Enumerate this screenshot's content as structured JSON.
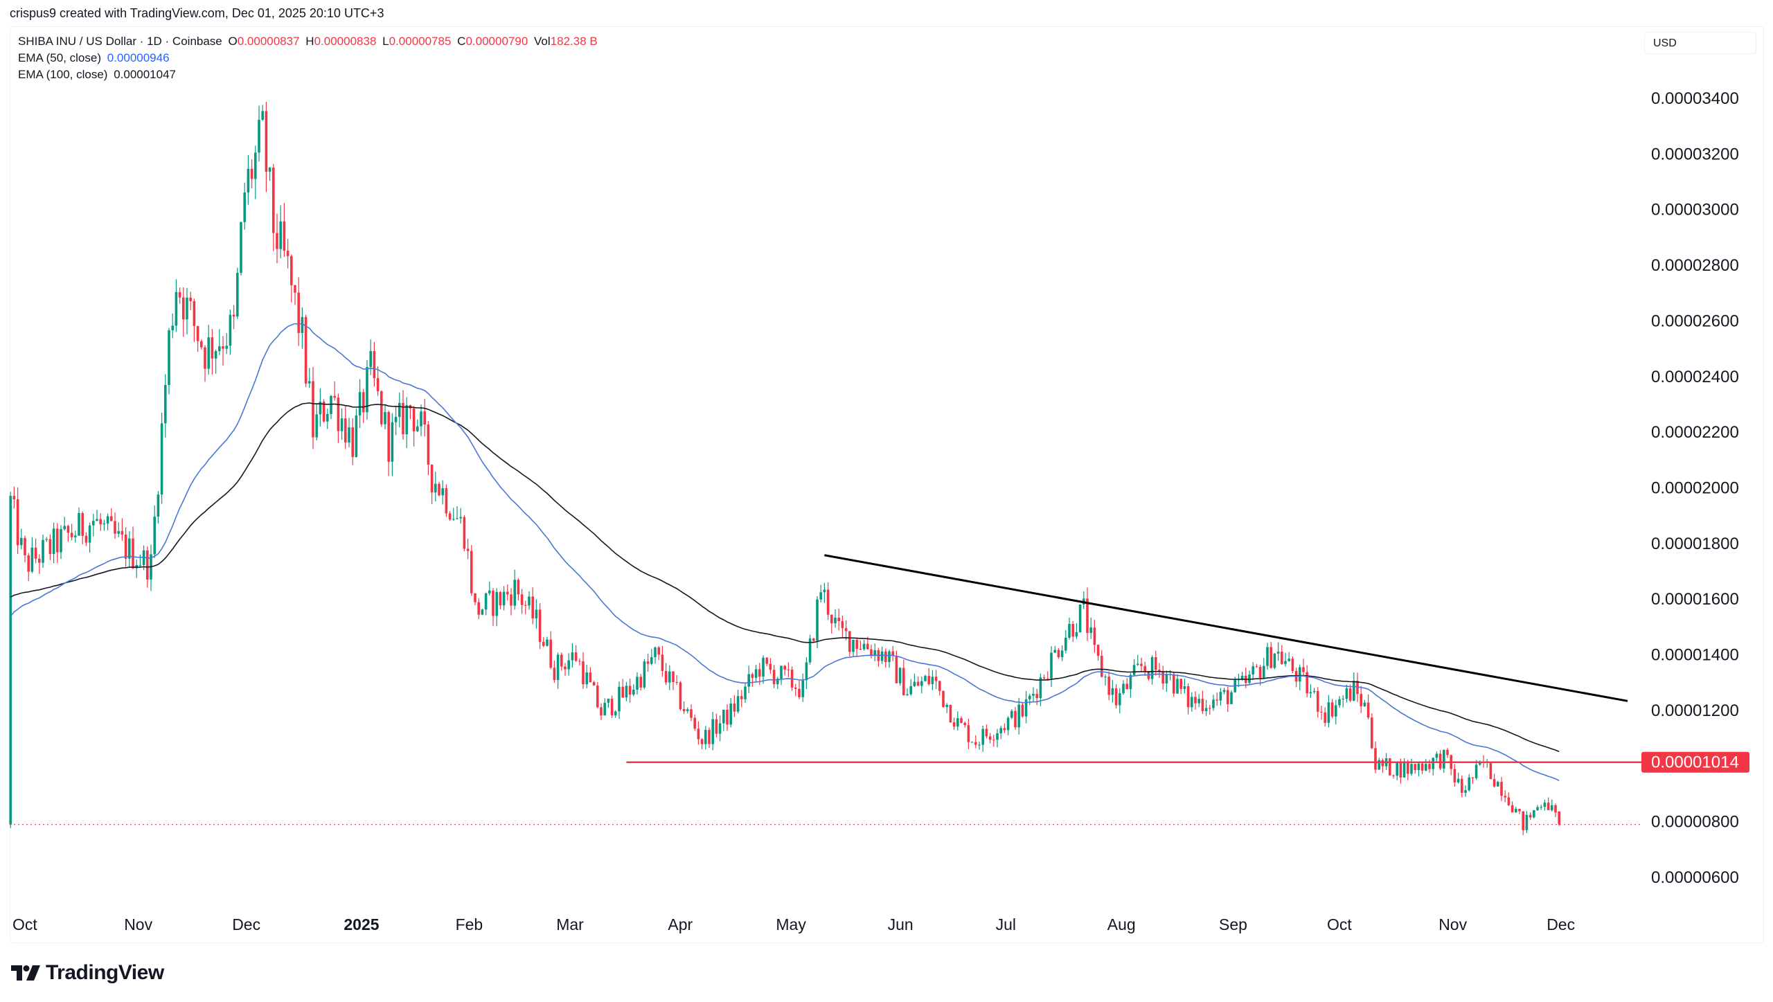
{
  "attribution": "crispus9 created with TradingView.com, Dec 01, 2025 20:10 UTC+3",
  "legend": {
    "symbol": "SHIBA INU / US Dollar · 1D · Coinbase",
    "o_label": "O",
    "o": "0.00000837",
    "h_label": "H",
    "h": "0.00000838",
    "l_label": "L",
    "l": "0.00000785",
    "c_label": "C",
    "c": "0.00000790",
    "vol_label": "Vol",
    "vol": "182.38 B",
    "ema50_label": "EMA (50, close)",
    "ema50": "0.00000946",
    "ema100_label": "EMA (100, close)",
    "ema100": "0.00001047"
  },
  "currency": "USD",
  "logo": "TradingView",
  "colors": {
    "up": "#089981",
    "down": "#f23645",
    "ema50": "#4a76d6",
    "ema100": "#131722",
    "support": "#f23645",
    "trendline": "#000000"
  },
  "chart_data": {
    "type": "candlestick",
    "title": "SHIBA INU / US Dollar · 1D · Coinbase",
    "last_candle": {
      "date": "2025-12-01",
      "open": 8.37e-06,
      "high": 8.38e-06,
      "low": 7.85e-06,
      "close": 7.9e-06
    },
    "close_path": [
      [
        "2024-09-27",
        1.95e-05
      ],
      [
        "2024-10-01",
        1.722e-05
      ],
      [
        "2024-10-10",
        1.803e-05
      ],
      [
        "2024-10-20",
        1.884e-05
      ],
      [
        "2024-10-31",
        1.762e-05
      ],
      [
        "2024-11-05",
        1.722e-05
      ],
      [
        "2024-11-10",
        2.534e-05
      ],
      [
        "2024-11-12",
        2.738e-05
      ],
      [
        "2024-11-20",
        2.494e-05
      ],
      [
        "2024-11-28",
        2.575e-05
      ],
      [
        "2024-12-01",
        3.063e-05
      ],
      [
        "2024-12-06",
        3.266e-05
      ],
      [
        "2024-12-09",
        2.941e-05
      ],
      [
        "2024-12-13",
        2.778e-05
      ],
      [
        "2024-12-17",
        2.534e-05
      ],
      [
        "2024-12-20",
        2.209e-05
      ],
      [
        "2024-12-25",
        2.331e-05
      ],
      [
        "2024-12-31",
        2.169e-05
      ],
      [
        "2025-01-05",
        2.412e-05
      ],
      [
        "2025-01-10",
        2.169e-05
      ],
      [
        "2025-01-16",
        2.291e-05
      ],
      [
        "2025-01-19",
        2.209e-05
      ],
      [
        "2025-01-22",
        2.047e-05
      ],
      [
        "2025-01-26",
        1.966e-05
      ],
      [
        "2025-01-31",
        1.844e-05
      ],
      [
        "2025-02-03",
        1.559e-05
      ],
      [
        "2025-02-10",
        1.6e-05
      ],
      [
        "2025-02-14",
        1.64e-05
      ],
      [
        "2025-02-20",
        1.518e-05
      ],
      [
        "2025-02-25",
        1.356e-05
      ],
      [
        "2025-03-03",
        1.396e-05
      ],
      [
        "2025-03-10",
        1.193e-05
      ],
      [
        "2025-03-18",
        1.274e-05
      ],
      [
        "2025-03-25",
        1.396e-05
      ],
      [
        "2025-04-01",
        1.234e-05
      ],
      [
        "2025-04-07",
        1.092e-05
      ],
      [
        "2025-04-15",
        1.193e-05
      ],
      [
        "2025-04-23",
        1.356e-05
      ],
      [
        "2025-04-30",
        1.315e-05
      ],
      [
        "2025-05-05",
        1.274e-05
      ],
      [
        "2025-05-10",
        1.64e-05
      ],
      [
        "2025-05-15",
        1.478e-05
      ],
      [
        "2025-05-22",
        1.437e-05
      ],
      [
        "2025-05-28",
        1.396e-05
      ],
      [
        "2025-06-03",
        1.274e-05
      ],
      [
        "2025-06-10",
        1.315e-05
      ],
      [
        "2025-06-17",
        1.153e-05
      ],
      [
        "2025-06-22",
        1.092e-05
      ],
      [
        "2025-06-30",
        1.153e-05
      ],
      [
        "2025-07-05",
        1.193e-05
      ],
      [
        "2025-07-11",
        1.335e-05
      ],
      [
        "2025-07-17",
        1.478e-05
      ],
      [
        "2025-07-22",
        1.559e-05
      ],
      [
        "2025-07-25",
        1.396e-05
      ],
      [
        "2025-07-31",
        1.234e-05
      ],
      [
        "2025-08-07",
        1.356e-05
      ],
      [
        "2025-08-14",
        1.335e-05
      ],
      [
        "2025-08-20",
        1.234e-05
      ],
      [
        "2025-08-28",
        1.234e-05
      ],
      [
        "2025-09-05",
        1.295e-05
      ],
      [
        "2025-09-13",
        1.417e-05
      ],
      [
        "2025-09-20",
        1.315e-05
      ],
      [
        "2025-09-27",
        1.193e-05
      ],
      [
        "2025-10-05",
        1.274e-05
      ],
      [
        "2025-10-09",
        1.193e-05
      ],
      [
        "2025-10-11",
        1e-05
      ],
      [
        "2025-10-20",
        9.9e-06
      ],
      [
        "2025-10-30",
        1.031e-05
      ],
      [
        "2025-11-04",
        9.09e-06
      ],
      [
        "2025-11-10",
        1.01e-05
      ],
      [
        "2025-11-17",
        8.88e-06
      ],
      [
        "2025-11-21",
        7.87e-06
      ],
      [
        "2025-11-27",
        8.88e-06
      ],
      [
        "2025-12-01",
        7.9e-06
      ]
    ],
    "indicators": [
      {
        "name": "EMA (50, close)",
        "period": 50,
        "last": 9.46e-06
      },
      {
        "name": "EMA (100, close)",
        "period": 100,
        "last": 1.047e-05
      }
    ],
    "drawings": {
      "trendline": {
        "from": [
          "2025-05-11",
          1.758e-05
        ],
        "to": [
          "2025-12-20",
          1.234e-05
        ]
      },
      "support": {
        "from": "2025-03-17",
        "value": 1.014e-05,
        "label": "0.00001014"
      },
      "last_price_line": 7.9e-06
    },
    "y_ticks": [
      "0.00003400",
      "0.00003200",
      "0.00003000",
      "0.00002800",
      "0.00002600",
      "0.00002400",
      "0.00002200",
      "0.00002000",
      "0.00001800",
      "0.00001600",
      "0.00001400",
      "0.00001200",
      "0.00000800",
      "0.00000600"
    ],
    "x_ticks": [
      {
        "label": "Oct",
        "date": "2024-10-01"
      },
      {
        "label": "Nov",
        "date": "2024-11-01"
      },
      {
        "label": "Dec",
        "date": "2024-12-01"
      },
      {
        "label": "2025",
        "date": "2025-01-01",
        "bold": true
      },
      {
        "label": "Feb",
        "date": "2025-02-01"
      },
      {
        "label": "Mar",
        "date": "2025-03-01"
      },
      {
        "label": "Apr",
        "date": "2025-04-01"
      },
      {
        "label": "May",
        "date": "2025-05-01"
      },
      {
        "label": "Jun",
        "date": "2025-06-01"
      },
      {
        "label": "Jul",
        "date": "2025-07-01"
      },
      {
        "label": "Aug",
        "date": "2025-08-01"
      },
      {
        "label": "Sep",
        "date": "2025-09-01"
      },
      {
        "label": "Oct",
        "date": "2025-10-01"
      },
      {
        "label": "Nov",
        "date": "2025-11-01"
      },
      {
        "label": "Dec",
        "date": "2025-12-01"
      }
    ],
    "y_range": [
      5.3e-06,
      3.52e-05
    ],
    "scale": "linear",
    "grid": false,
    "legend": "top-left"
  }
}
